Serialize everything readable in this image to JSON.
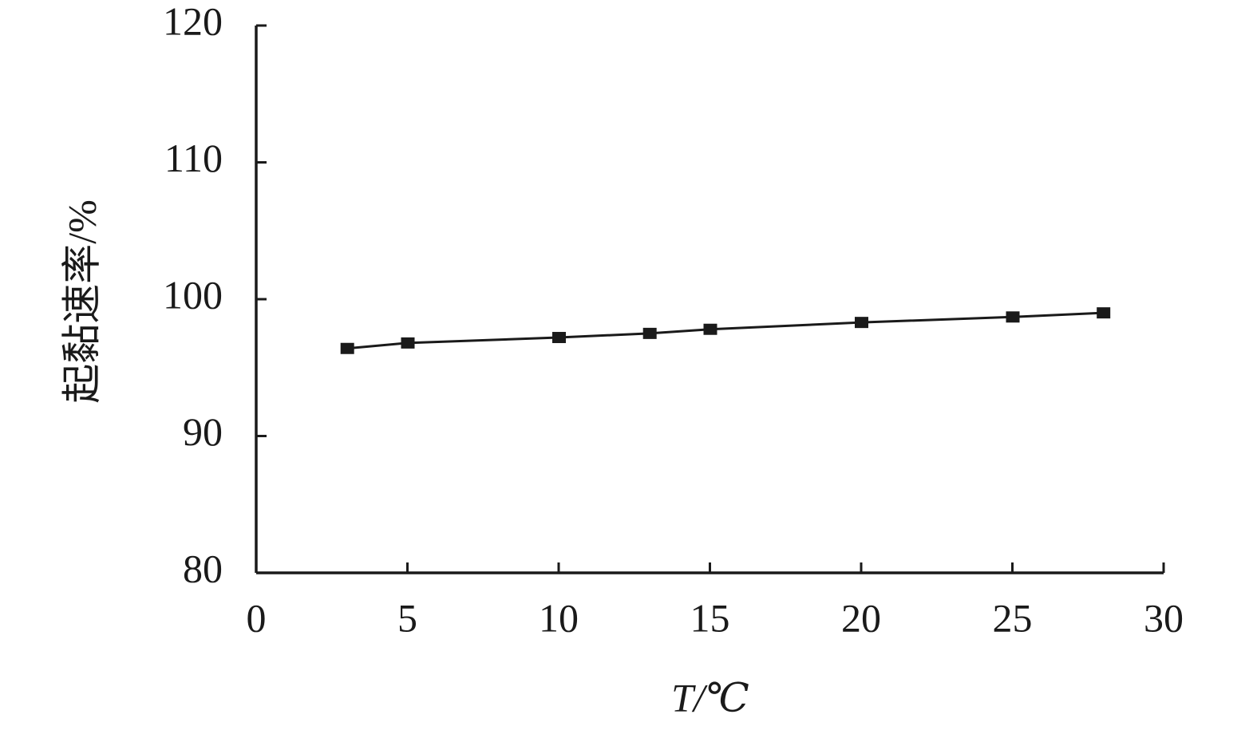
{
  "chart_data": {
    "type": "line",
    "x_label": "T/℃",
    "y_label": "起黏速率/%",
    "x": [
      3,
      5,
      10,
      13,
      15,
      20,
      25,
      28
    ],
    "series": [
      {
        "name": "起黏速率",
        "color": "#1a1a1a",
        "values": [
          96.4,
          96.8,
          97.2,
          97.5,
          97.8,
          98.3,
          98.7,
          99.0
        ]
      }
    ],
    "xlim": [
      0,
      30
    ],
    "xticks": [
      0,
      5,
      10,
      15,
      20,
      25,
      30
    ],
    "ylim": [
      80,
      120
    ],
    "yticks": [
      80,
      90,
      100,
      110,
      120
    ],
    "grid": false,
    "marker": "square"
  }
}
